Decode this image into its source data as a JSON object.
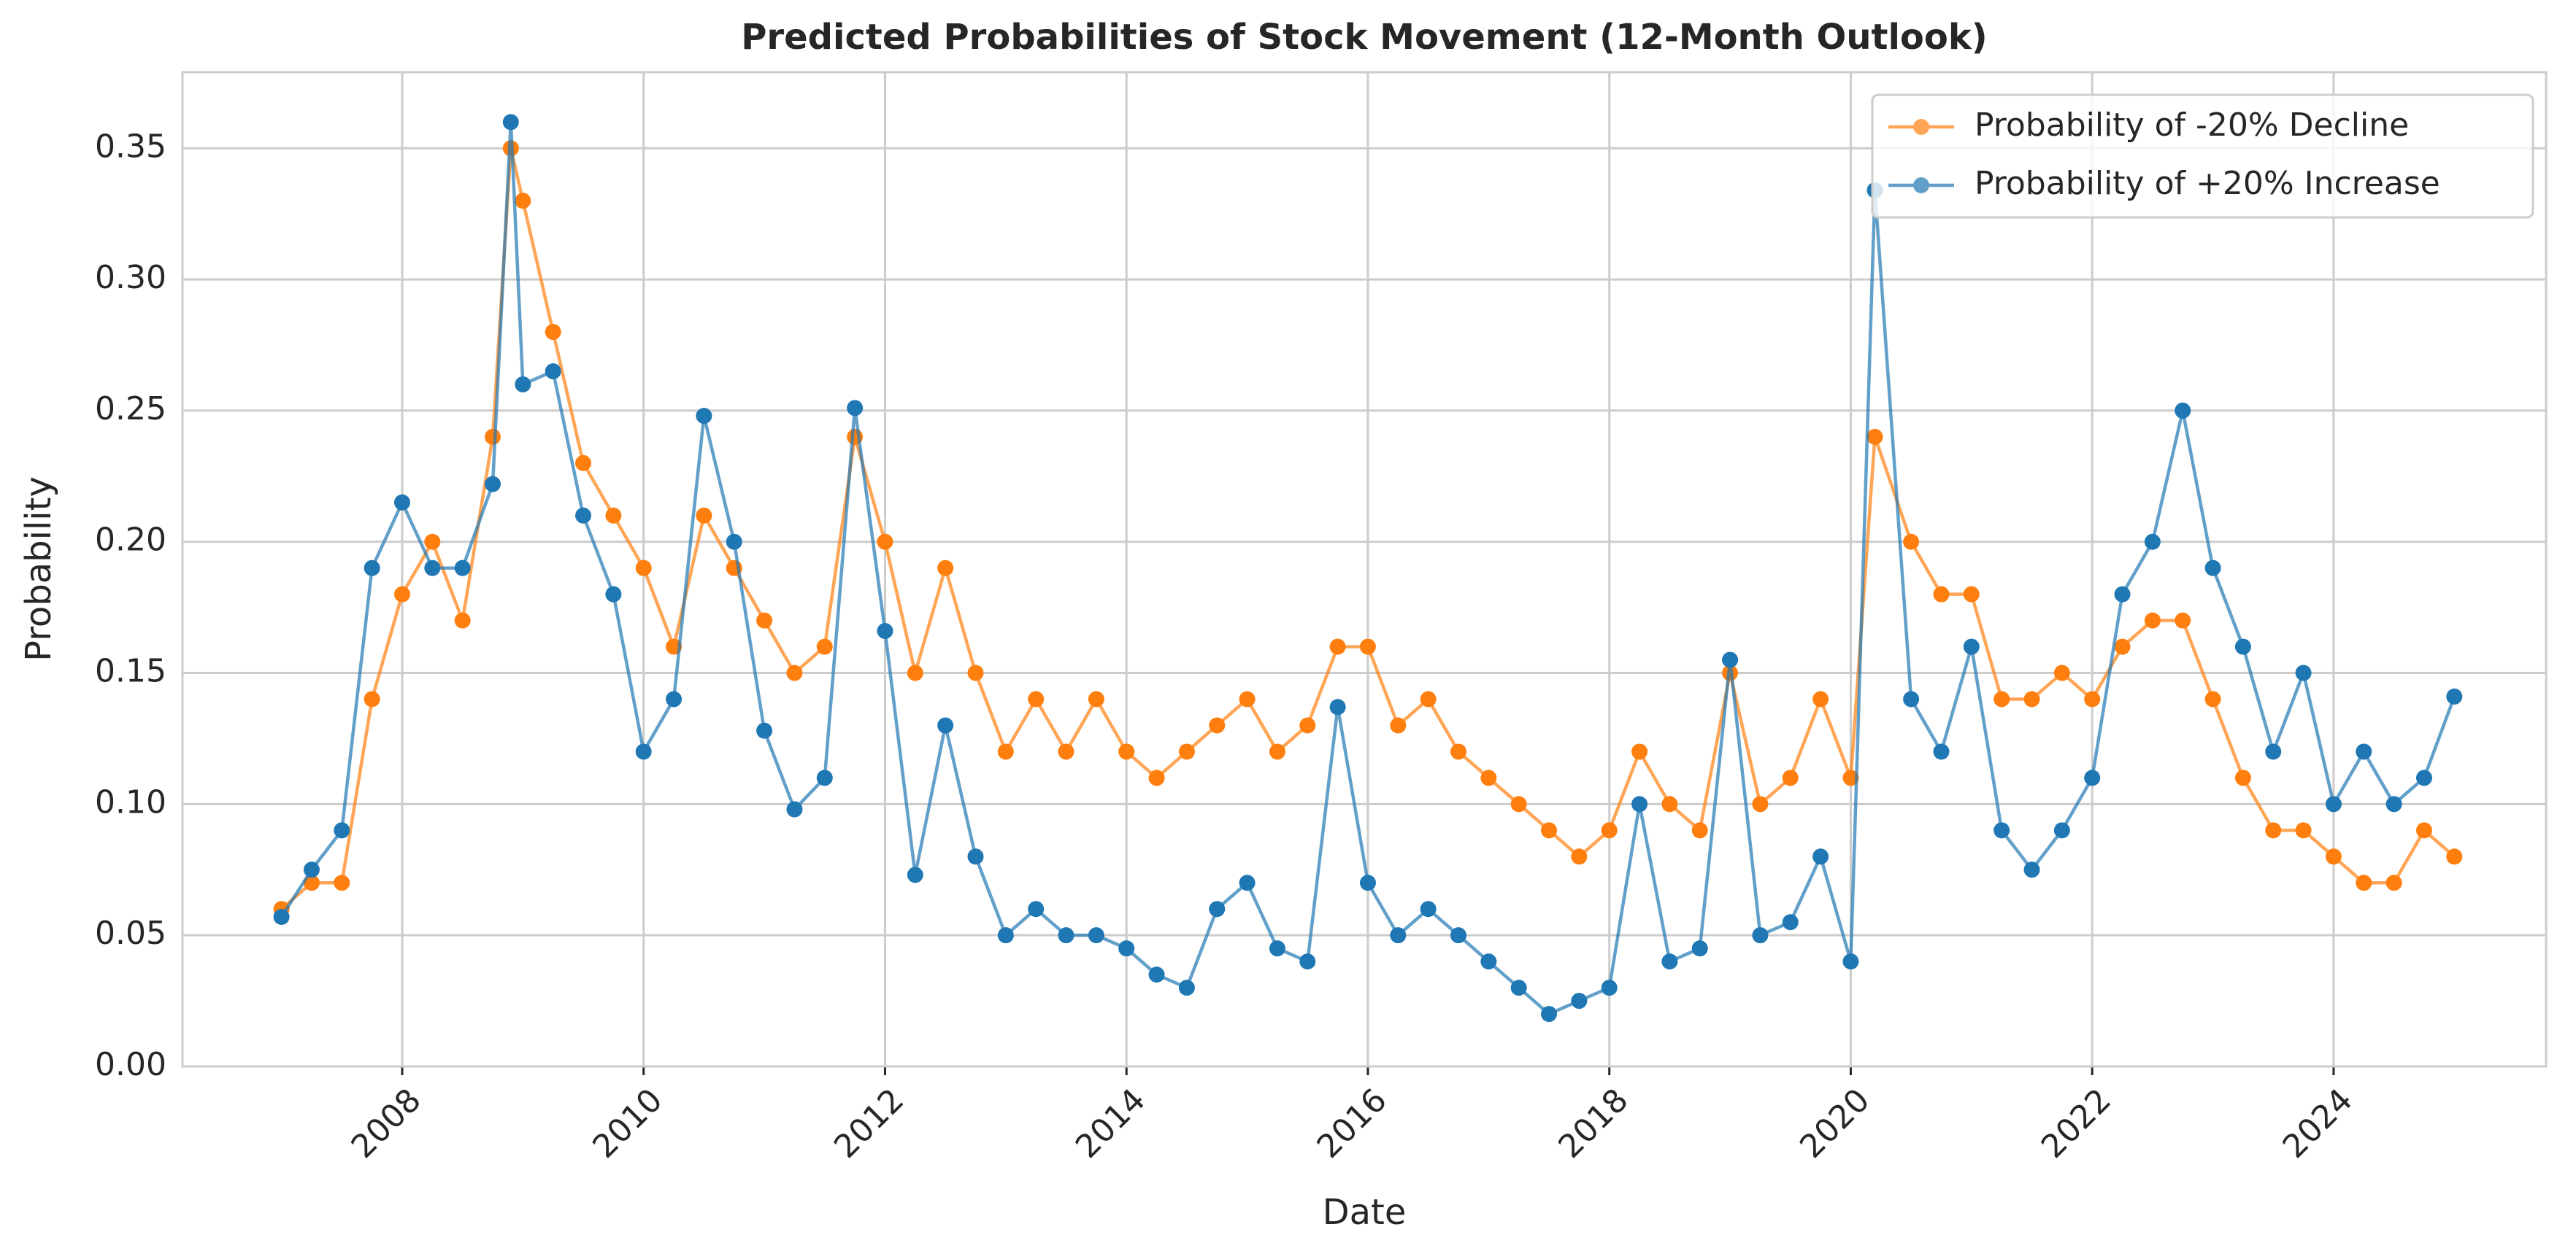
{
  "chart_data": {
    "type": "line",
    "title": "Predicted Probabilities of Stock Movement (12-Month Outlook)",
    "x_label": "Date",
    "y_label": "Probability",
    "x": [
      2007.0,
      2007.25,
      2007.5,
      2007.75,
      2008.0,
      2008.25,
      2008.5,
      2008.75,
      2008.9,
      2009.0,
      2009.25,
      2009.5,
      2009.75,
      2010.0,
      2010.25,
      2010.5,
      2010.75,
      2011.0,
      2011.25,
      2011.5,
      2011.75,
      2012.0,
      2012.25,
      2012.5,
      2012.75,
      2013.0,
      2013.25,
      2013.5,
      2013.75,
      2014.0,
      2014.25,
      2014.5,
      2014.75,
      2015.0,
      2015.25,
      2015.5,
      2015.75,
      2016.0,
      2016.25,
      2016.5,
      2016.75,
      2017.0,
      2017.25,
      2017.5,
      2017.75,
      2018.0,
      2018.25,
      2018.5,
      2018.75,
      2019.0,
      2019.25,
      2019.5,
      2019.75,
      2020.0,
      2020.2,
      2020.5,
      2020.75,
      2021.0,
      2021.25,
      2021.5,
      2021.75,
      2022.0,
      2022.25,
      2022.5,
      2022.75,
      2023.0,
      2023.25,
      2023.5,
      2023.75,
      2024.0,
      2024.25,
      2024.5,
      2024.75,
      2025.0
    ],
    "series": [
      {
        "name": "Probability of -20% Decline",
        "color": "#ff7f0e",
        "values": [
          0.06,
          0.07,
          0.07,
          0.14,
          0.18,
          0.2,
          0.17,
          0.24,
          0.35,
          0.33,
          0.28,
          0.23,
          0.21,
          0.19,
          0.16,
          0.21,
          0.19,
          0.17,
          0.15,
          0.16,
          0.24,
          0.2,
          0.15,
          0.19,
          0.15,
          0.12,
          0.14,
          0.12,
          0.14,
          0.12,
          0.11,
          0.12,
          0.13,
          0.14,
          0.12,
          0.13,
          0.16,
          0.16,
          0.13,
          0.14,
          0.12,
          0.11,
          0.1,
          0.09,
          0.08,
          0.09,
          0.12,
          0.1,
          0.09,
          0.15,
          0.1,
          0.11,
          0.14,
          0.11,
          0.24,
          0.2,
          0.18,
          0.18,
          0.14,
          0.14,
          0.15,
          0.14,
          0.16,
          0.17,
          0.17,
          0.14,
          0.11,
          0.09,
          0.09,
          0.08,
          0.07,
          0.07,
          0.09,
          0.08
        ]
      },
      {
        "name": "Probability of +20% Increase",
        "color": "#1f77b4",
        "values": [
          0.057,
          0.075,
          0.09,
          0.19,
          0.215,
          0.19,
          0.19,
          0.222,
          0.36,
          0.26,
          0.265,
          0.21,
          0.18,
          0.12,
          0.14,
          0.248,
          0.2,
          0.128,
          0.098,
          0.11,
          0.251,
          0.166,
          0.073,
          0.13,
          0.08,
          0.05,
          0.06,
          0.05,
          0.05,
          0.045,
          0.035,
          0.03,
          0.06,
          0.07,
          0.045,
          0.04,
          0.137,
          0.07,
          0.05,
          0.06,
          0.05,
          0.04,
          0.03,
          0.02,
          0.025,
          0.03,
          0.1,
          0.04,
          0.045,
          0.155,
          0.05,
          0.055,
          0.08,
          0.04,
          0.334,
          0.14,
          0.12,
          0.16,
          0.09,
          0.075,
          0.09,
          0.11,
          0.18,
          0.2,
          0.25,
          0.19,
          0.16,
          0.12,
          0.15,
          0.1,
          0.12,
          0.1,
          0.11,
          0.141
        ]
      }
    ],
    "xlim": [
      2006.18,
      2025.76
    ],
    "xticks": [
      2008,
      2010,
      2012,
      2014,
      2016,
      2018,
      2020,
      2022,
      2024
    ],
    "ylim": [
      0,
      0.379
    ],
    "yticks": [
      {
        "value": 0,
        "label": "0.00"
      },
      0.05,
      {
        "value": 0.1,
        "label": "0.10"
      },
      0.15,
      {
        "value": 0.2,
        "label": "0.20"
      },
      0.25,
      {
        "value": 0.3,
        "label": "0.30"
      },
      0.35
    ],
    "grid": true,
    "legend": "upper right"
  }
}
